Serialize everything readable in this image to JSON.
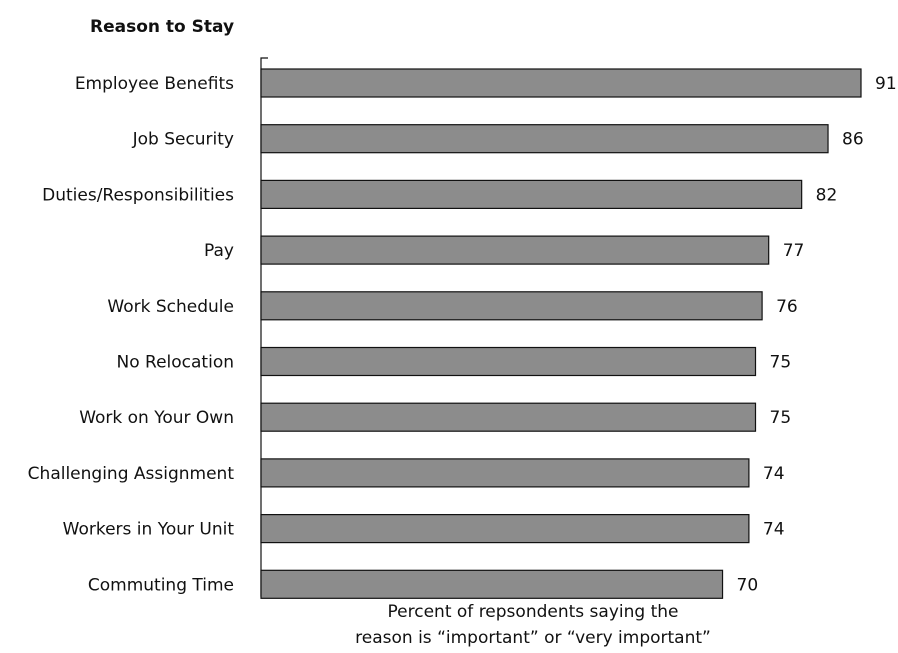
{
  "chart_data": {
    "type": "bar",
    "orientation": "horizontal",
    "title": "Reason to Stay",
    "categories": [
      "Employee Benefits",
      "Job Security",
      "Duties/Responsibilities",
      "Pay",
      "Work Schedule",
      "No Relocation",
      "Work on Your Own",
      "Challenging Assignment",
      "Workers in Your Unit",
      "Commuting Time"
    ],
    "values": [
      91,
      86,
      82,
      77,
      76,
      75,
      75,
      74,
      74,
      70
    ],
    "xlabel_lines": [
      "Percent of repsondents saying the",
      "reason is “important” or “very important”"
    ],
    "ylabel": "",
    "xlim": [
      0,
      91
    ],
    "grid": false,
    "bar_color": "#8c8c8c",
    "bar_edge_color": "#111111"
  }
}
